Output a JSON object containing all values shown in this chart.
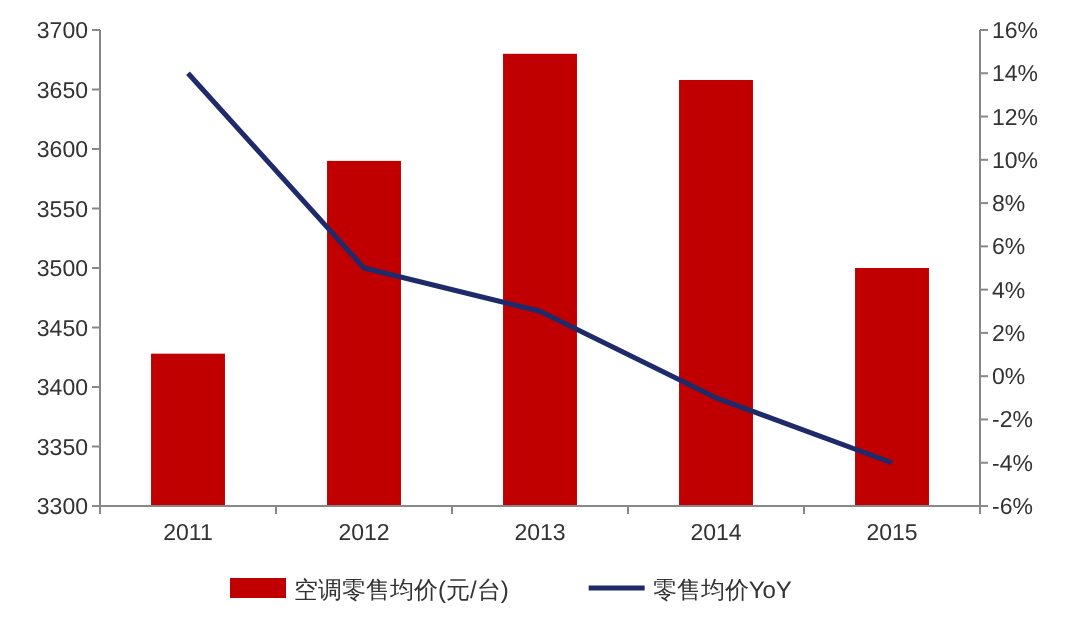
{
  "chart_data": {
    "type": "bar",
    "categories": [
      "2011",
      "2012",
      "2013",
      "2014",
      "2015"
    ],
    "series": [
      {
        "name": "空调零售均价(元/台)",
        "color": "#c00000",
        "values": [
          3428,
          3590,
          3680,
          3658,
          3500
        ]
      },
      {
        "name": "零售均价YoY",
        "type": "line",
        "axis": "y2",
        "color": "#1f2a6b",
        "values": [
          14,
          5,
          3,
          -1,
          -4
        ]
      }
    ],
    "ylim": [
      3300,
      3700
    ],
    "yticks": [
      3300,
      3350,
      3400,
      3450,
      3500,
      3550,
      3600,
      3650,
      3700
    ],
    "y2lim": [
      -6,
      16
    ],
    "y2ticks": [
      {
        "value": -6,
        "label": "-6%"
      },
      {
        "value": -4,
        "label": "-4%"
      },
      {
        "value": -2,
        "label": "-2%"
      },
      {
        "value": 0,
        "label": "0%"
      },
      {
        "value": 2,
        "label": "2%"
      },
      {
        "value": 4,
        "label": "4%"
      },
      {
        "value": 6,
        "label": "6%"
      },
      {
        "value": 8,
        "label": "8%"
      },
      {
        "value": 10,
        "label": "10%"
      },
      {
        "value": 12,
        "label": "12%"
      },
      {
        "value": 14,
        "label": "14%"
      },
      {
        "value": 16,
        "label": "16%"
      }
    ],
    "legend": "bottom",
    "grid": false,
    "marker": "none",
    "line_style": "solid"
  }
}
